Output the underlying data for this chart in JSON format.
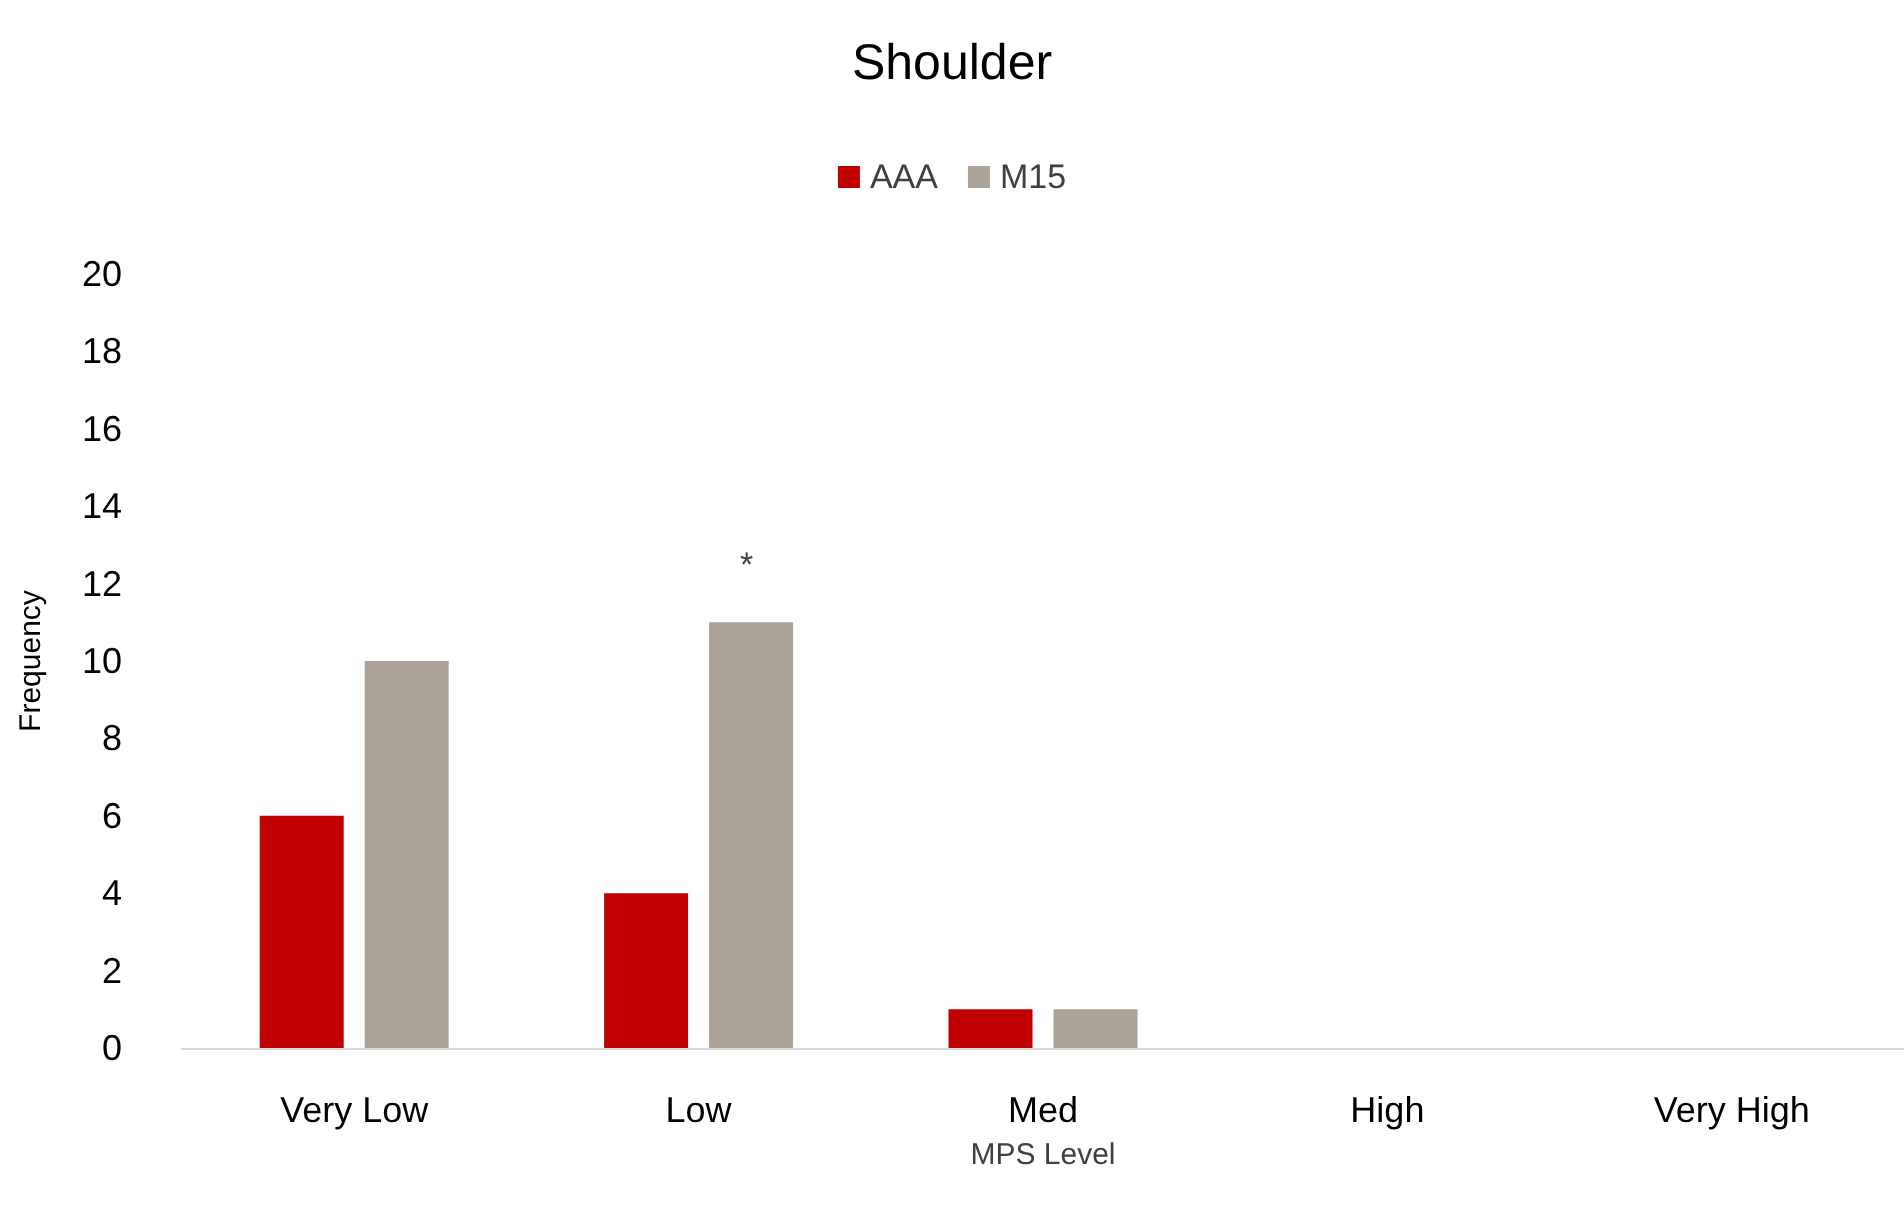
{
  "chart_data": {
    "type": "bar",
    "title": "Shoulder",
    "xlabel": "MPS Level",
    "ylabel": "Frequency",
    "categories": [
      "Very Low",
      "Low",
      "Med",
      "High",
      "Very High"
    ],
    "series": [
      {
        "name": "AAA",
        "color": "#c00000",
        "values": [
          6,
          4,
          1,
          0,
          0
        ]
      },
      {
        "name": "M15",
        "color": "#aca398",
        "values": [
          10,
          11,
          1,
          0,
          0
        ]
      }
    ],
    "ylim": [
      0,
      20
    ],
    "yticks": [
      0,
      2,
      4,
      6,
      8,
      10,
      12,
      14,
      16,
      18,
      20
    ],
    "grid": false,
    "legend": "top",
    "annotations": [
      "*"
    ]
  }
}
